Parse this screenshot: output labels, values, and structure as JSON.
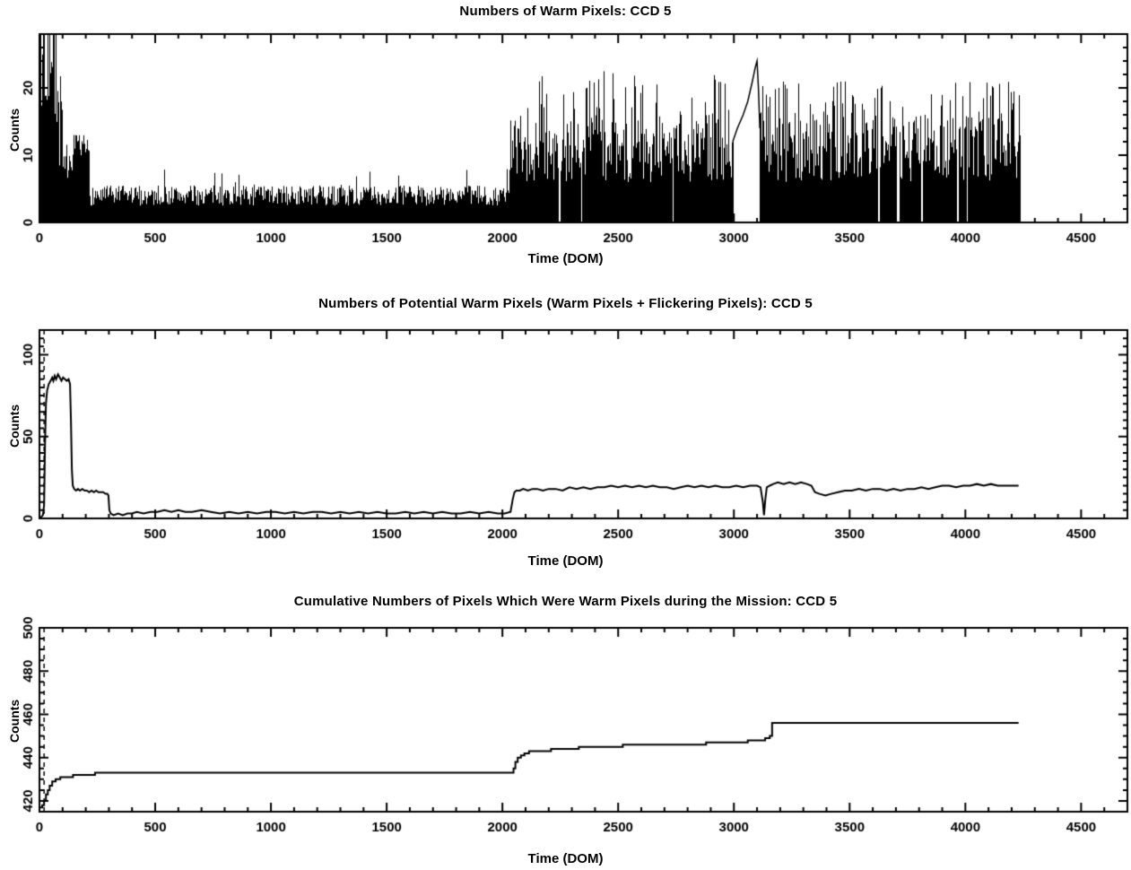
{
  "page": {
    "background": "#ffffff",
    "ink": "#000000"
  },
  "chart_data": [
    {
      "type": "area",
      "style": "noisy-fill",
      "title": "Numbers of Warm Pixels: CCD 5",
      "xlabel": "Time (DOM)",
      "ylabel": "Counts",
      "xlim": [
        0,
        4700
      ],
      "ylim": [
        0,
        28
      ],
      "grid": false,
      "legend": null,
      "xticks": {
        "values": [
          0,
          500,
          1000,
          1500,
          2000,
          2500,
          3000,
          3500,
          4000,
          4500
        ],
        "labels": [
          "0",
          "500",
          "1000",
          "1500",
          "2000",
          "2500",
          "3000",
          "3500",
          "4000",
          "4500"
        ],
        "minor_step": 100
      },
      "yticks": {
        "values": [
          0,
          10,
          20
        ],
        "labels": [
          "0",
          "10",
          "20"
        ],
        "minor_step": 2
      },
      "vline_x": 20,
      "seed": 7,
      "segments": [
        {
          "x0": 2,
          "x1": 14,
          "lo": 2,
          "hi": 24,
          "spike": 28,
          "spike_p": 0.5
        },
        {
          "x0": 14,
          "x1": 68,
          "lo": 15,
          "hi": 28,
          "spike": 28,
          "spike_p": 0.5
        },
        {
          "x0": 68,
          "x1": 95,
          "lo": 6,
          "hi": 19,
          "spike": 23,
          "spike_p": 0.25
        },
        {
          "x0": 95,
          "x1": 148,
          "lo": 5,
          "hi": 10,
          "spike": 13,
          "spike_p": 0.3
        },
        {
          "x0": 148,
          "x1": 212,
          "lo": 8,
          "hi": 13,
          "spike": 13,
          "spike_p": 0.1
        },
        {
          "x0": 212,
          "x1": 2032,
          "lo": 2.5,
          "hi": 5.5,
          "spike": 8,
          "spike_p": 0.05
        },
        {
          "x0": 2032,
          "x1": 2995,
          "lo": 6,
          "hi": 16,
          "spike": 23,
          "spike_p": 0.15
        },
        {
          "x0": 3112,
          "x1": 4235,
          "lo": 6,
          "hi": 16,
          "spike": 21,
          "spike_p": 0.15
        }
      ],
      "sparse_trace": [
        [
          2995,
          12
        ],
        [
          3015,
          14
        ],
        [
          3040,
          16
        ],
        [
          3060,
          18
        ],
        [
          3080,
          21
        ],
        [
          3092,
          23
        ],
        [
          3100,
          24
        ],
        [
          3106,
          20
        ],
        [
          3112,
          14
        ]
      ],
      "gaps": [
        [
          2243,
          6
        ],
        [
          2339,
          4
        ],
        [
          2734,
          5
        ],
        [
          3620,
          9
        ],
        [
          3704,
          8
        ],
        [
          3808,
          6
        ],
        [
          3962,
          7
        ],
        [
          4004,
          5
        ]
      ]
    },
    {
      "type": "line",
      "style": "line",
      "title": "Numbers of Potential Warm Pixels (Warm Pixels + Flickering Pixels): CCD 5",
      "xlabel": "Time (DOM)",
      "ylabel": "Counts",
      "xlim": [
        0,
        4700
      ],
      "ylim": [
        0,
        115
      ],
      "grid": false,
      "legend": null,
      "xticks": {
        "values": [
          0,
          500,
          1000,
          1500,
          2000,
          2500,
          3000,
          3500,
          4000,
          4500
        ],
        "labels": [
          "0",
          "500",
          "1000",
          "1500",
          "2000",
          "2500",
          "3000",
          "3500",
          "4000",
          "4500"
        ],
        "minor_step": 100
      },
      "yticks": {
        "values": [
          0,
          50,
          100
        ],
        "labels": [
          "0",
          "50",
          "100"
        ],
        "minor_step": 5
      },
      "vline_x": 20,
      "points": [
        [
          0,
          0
        ],
        [
          8,
          1
        ],
        [
          15,
          2
        ],
        [
          20,
          8
        ],
        [
          24,
          45
        ],
        [
          28,
          70
        ],
        [
          33,
          78
        ],
        [
          40,
          82
        ],
        [
          48,
          84
        ],
        [
          55,
          86
        ],
        [
          60,
          84
        ],
        [
          66,
          87
        ],
        [
          72,
          85
        ],
        [
          80,
          88
        ],
        [
          88,
          86
        ],
        [
          95,
          84
        ],
        [
          102,
          86
        ],
        [
          110,
          85
        ],
        [
          118,
          84
        ],
        [
          126,
          85
        ],
        [
          132,
          82
        ],
        [
          136,
          60
        ],
        [
          140,
          30
        ],
        [
          144,
          20
        ],
        [
          150,
          18
        ],
        [
          158,
          17
        ],
        [
          166,
          18
        ],
        [
          175,
          17
        ],
        [
          185,
          18
        ],
        [
          195,
          17
        ],
        [
          205,
          17
        ],
        [
          215,
          16
        ],
        [
          225,
          17
        ],
        [
          235,
          16
        ],
        [
          245,
          17
        ],
        [
          255,
          16
        ],
        [
          265,
          16
        ],
        [
          275,
          16
        ],
        [
          285,
          15
        ],
        [
          293,
          15
        ],
        [
          298,
          14
        ],
        [
          302,
          5
        ],
        [
          308,
          3
        ],
        [
          320,
          2
        ],
        [
          340,
          3
        ],
        [
          360,
          2
        ],
        [
          380,
          3
        ],
        [
          400,
          3
        ],
        [
          420,
          4
        ],
        [
          450,
          3
        ],
        [
          480,
          4
        ],
        [
          510,
          4
        ],
        [
          540,
          5
        ],
        [
          570,
          4
        ],
        [
          600,
          5
        ],
        [
          630,
          4
        ],
        [
          660,
          4
        ],
        [
          700,
          5
        ],
        [
          740,
          4
        ],
        [
          780,
          3
        ],
        [
          820,
          4
        ],
        [
          860,
          3
        ],
        [
          900,
          4
        ],
        [
          940,
          3
        ],
        [
          980,
          4
        ],
        [
          1020,
          4
        ],
        [
          1060,
          3
        ],
        [
          1100,
          4
        ],
        [
          1140,
          3
        ],
        [
          1180,
          4
        ],
        [
          1220,
          4
        ],
        [
          1260,
          3
        ],
        [
          1300,
          4
        ],
        [
          1340,
          3
        ],
        [
          1380,
          4
        ],
        [
          1420,
          3
        ],
        [
          1460,
          4
        ],
        [
          1500,
          3
        ],
        [
          1540,
          3
        ],
        [
          1580,
          4
        ],
        [
          1620,
          3
        ],
        [
          1660,
          4
        ],
        [
          1700,
          3
        ],
        [
          1740,
          4
        ],
        [
          1780,
          3
        ],
        [
          1820,
          3
        ],
        [
          1860,
          4
        ],
        [
          1900,
          3
        ],
        [
          1940,
          4
        ],
        [
          1980,
          3
        ],
        [
          2010,
          3
        ],
        [
          2035,
          4
        ],
        [
          2045,
          12
        ],
        [
          2052,
          16
        ],
        [
          2060,
          17
        ],
        [
          2075,
          17
        ],
        [
          2090,
          18
        ],
        [
          2110,
          17
        ],
        [
          2130,
          18
        ],
        [
          2150,
          18
        ],
        [
          2175,
          17
        ],
        [
          2200,
          18
        ],
        [
          2230,
          18
        ],
        [
          2260,
          17
        ],
        [
          2290,
          19
        ],
        [
          2320,
          18
        ],
        [
          2350,
          19
        ],
        [
          2380,
          18
        ],
        [
          2410,
          19
        ],
        [
          2440,
          19
        ],
        [
          2470,
          20
        ],
        [
          2500,
          19
        ],
        [
          2530,
          20
        ],
        [
          2560,
          19
        ],
        [
          2590,
          20
        ],
        [
          2620,
          19
        ],
        [
          2650,
          20
        ],
        [
          2680,
          19
        ],
        [
          2710,
          19
        ],
        [
          2740,
          18
        ],
        [
          2770,
          19
        ],
        [
          2800,
          20
        ],
        [
          2830,
          19
        ],
        [
          2860,
          20
        ],
        [
          2890,
          19
        ],
        [
          2920,
          20
        ],
        [
          2950,
          19
        ],
        [
          2980,
          19
        ],
        [
          3010,
          20
        ],
        [
          3040,
          19
        ],
        [
          3070,
          20
        ],
        [
          3100,
          20
        ],
        [
          3115,
          19
        ],
        [
          3125,
          10
        ],
        [
          3130,
          2
        ],
        [
          3136,
          12
        ],
        [
          3142,
          19
        ],
        [
          3155,
          20
        ],
        [
          3170,
          21
        ],
        [
          3190,
          22
        ],
        [
          3215,
          21
        ],
        [
          3240,
          22
        ],
        [
          3265,
          21
        ],
        [
          3290,
          22
        ],
        [
          3315,
          21
        ],
        [
          3335,
          20
        ],
        [
          3350,
          16
        ],
        [
          3370,
          15
        ],
        [
          3395,
          14
        ],
        [
          3420,
          15
        ],
        [
          3450,
          16
        ],
        [
          3480,
          17
        ],
        [
          3510,
          17
        ],
        [
          3540,
          18
        ],
        [
          3570,
          17
        ],
        [
          3600,
          18
        ],
        [
          3630,
          18
        ],
        [
          3660,
          17
        ],
        [
          3690,
          18
        ],
        [
          3720,
          17
        ],
        [
          3750,
          18
        ],
        [
          3780,
          18
        ],
        [
          3810,
          19
        ],
        [
          3840,
          18
        ],
        [
          3870,
          19
        ],
        [
          3900,
          20
        ],
        [
          3930,
          20
        ],
        [
          3960,
          19
        ],
        [
          3990,
          20
        ],
        [
          4020,
          20
        ],
        [
          4050,
          21
        ],
        [
          4080,
          20
        ],
        [
          4110,
          21
        ],
        [
          4140,
          20
        ],
        [
          4170,
          20
        ],
        [
          4200,
          20
        ],
        [
          4230,
          20
        ]
      ]
    },
    {
      "type": "line",
      "style": "step",
      "title": "Cumulative Numbers of Pixels Which Were Warm Pixels during the Mission: CCD 5",
      "xlabel": "Time (DOM)",
      "ylabel": "Counts",
      "xlim": [
        0,
        4700
      ],
      "ylim": [
        415,
        500
      ],
      "grid": false,
      "legend": null,
      "xticks": {
        "values": [
          0,
          500,
          1000,
          1500,
          2000,
          2500,
          3000,
          3500,
          4000,
          4500
        ],
        "labels": [
          "0",
          "500",
          "1000",
          "1500",
          "2000",
          "2500",
          "3000",
          "3500",
          "4000",
          "4500"
        ],
        "minor_step": 100
      },
      "yticks": {
        "values": [
          420,
          440,
          460,
          480,
          500
        ],
        "labels": [
          "420",
          "440",
          "460",
          "480",
          "500"
        ],
        "minor_step": 5
      },
      "vline_x": 20,
      "points": [
        [
          0,
          417
        ],
        [
          12,
          418
        ],
        [
          20,
          420
        ],
        [
          28,
          423
        ],
        [
          36,
          425
        ],
        [
          44,
          427
        ],
        [
          55,
          429
        ],
        [
          70,
          430
        ],
        [
          90,
          431
        ],
        [
          120,
          431
        ],
        [
          145,
          432
        ],
        [
          190,
          432
        ],
        [
          240,
          433
        ],
        [
          300,
          433
        ],
        [
          2040,
          433
        ],
        [
          2048,
          435
        ],
        [
          2056,
          438
        ],
        [
          2066,
          440
        ],
        [
          2080,
          441
        ],
        [
          2095,
          442
        ],
        [
          2115,
          443
        ],
        [
          2160,
          443
        ],
        [
          2210,
          444
        ],
        [
          2270,
          444
        ],
        [
          2330,
          445
        ],
        [
          2420,
          445
        ],
        [
          2520,
          446
        ],
        [
          2700,
          446
        ],
        [
          2880,
          447
        ],
        [
          3000,
          447
        ],
        [
          3060,
          448
        ],
        [
          3110,
          448
        ],
        [
          3135,
          449
        ],
        [
          3155,
          450
        ],
        [
          3165,
          456
        ],
        [
          3200,
          456
        ],
        [
          4230,
          456
        ]
      ]
    }
  ]
}
